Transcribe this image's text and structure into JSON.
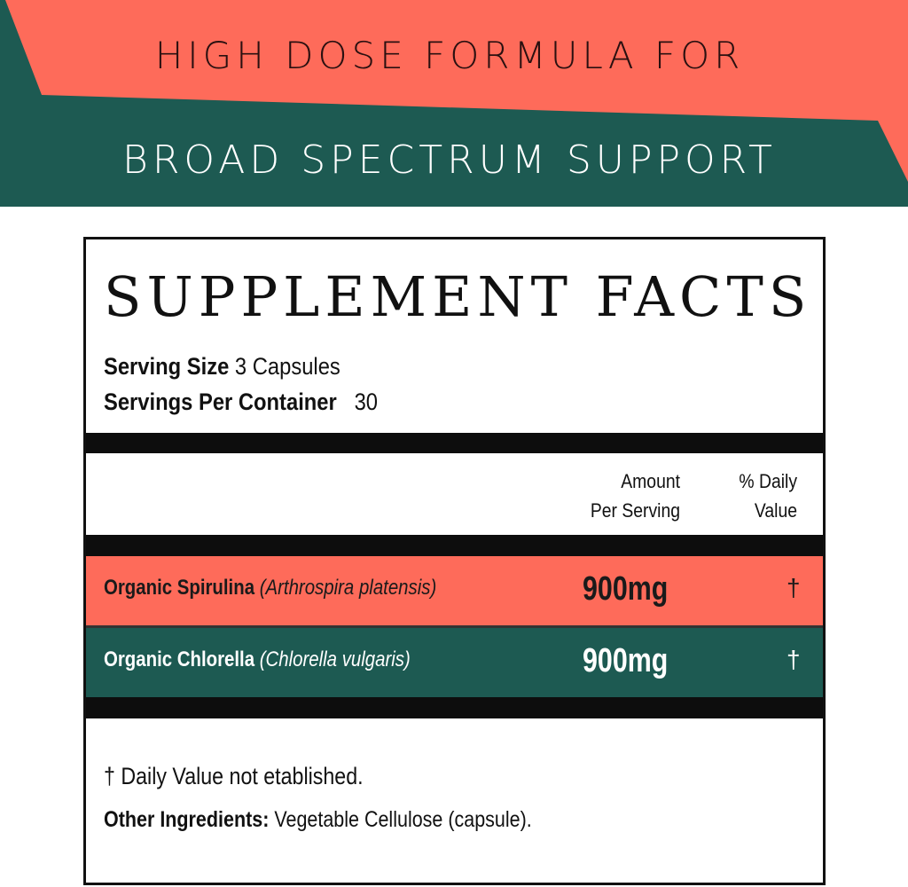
{
  "banner": {
    "line1": "HIGH DOSE FORMULA FOR",
    "line2": "BROAD SPECTRUM SUPPORT",
    "colors": {
      "coral": "#fe6b5a",
      "green": "#1d5a52"
    }
  },
  "label": {
    "title": "SUPPLEMENT FACTS",
    "serving_size_label": "Serving Size",
    "serving_size_value": "3 Capsules",
    "servings_per_container_label": "Servings Per Container",
    "servings_per_container_value": "30",
    "headers": {
      "amount_line1": "Amount",
      "amount_line2": "Per Serving",
      "dv_line1": "% Daily",
      "dv_line2": "Value"
    },
    "rows": [
      {
        "name": "Organic Spirulina",
        "latin": "(Arthrospira platensis)",
        "amount": "900mg",
        "dv": "†"
      },
      {
        "name": "Organic Chlorella",
        "latin": "(Chlorella vulgaris)",
        "amount": "900mg",
        "dv": "†"
      }
    ],
    "footnote": "† Daily Value not etablished.",
    "other_label": "Other Ingredients:",
    "other_value": "Vegetable Cellulose (capsule)."
  }
}
